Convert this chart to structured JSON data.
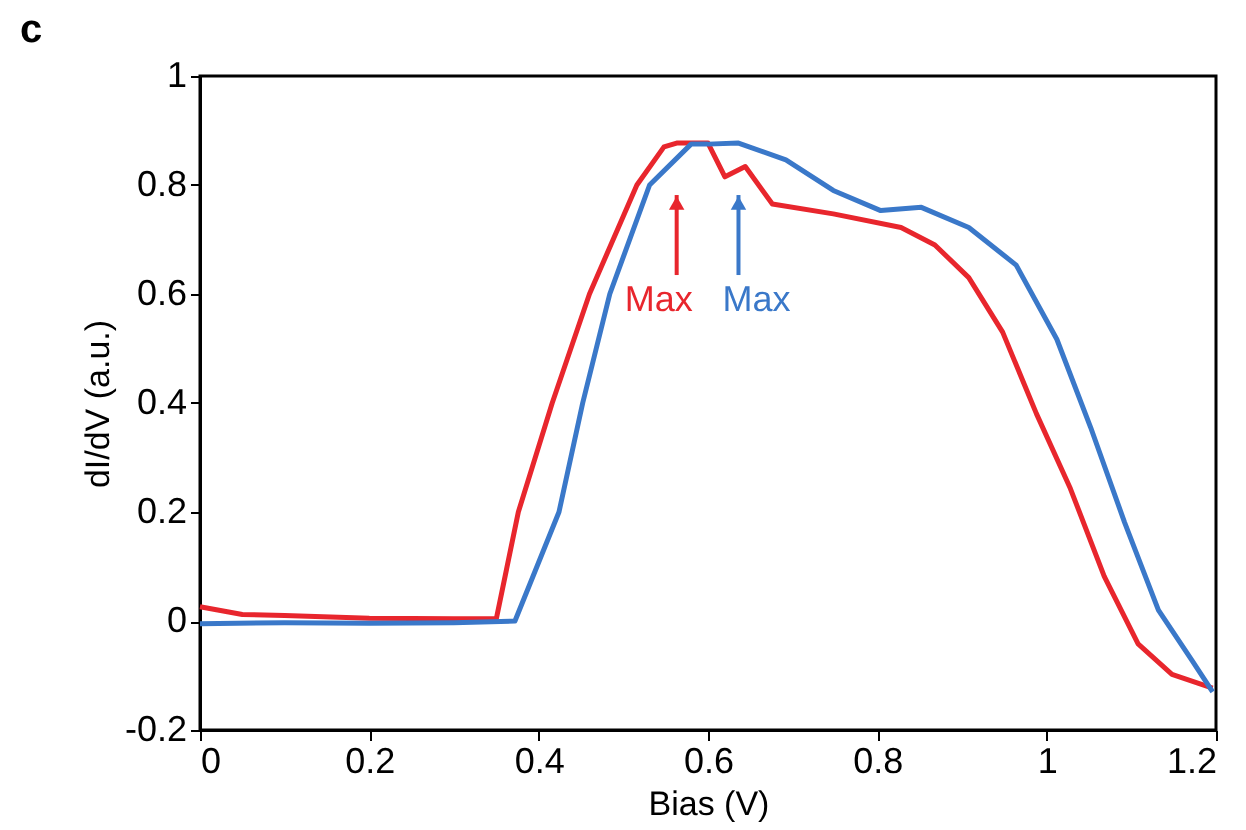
{
  "chart_data": {
    "type": "line",
    "title": "c",
    "xlabel": "Bias (V)",
    "ylabel": "dI/dV (a.u.)",
    "xlim": [
      0,
      1.2
    ],
    "xticks": [
      0,
      0.2,
      0.4,
      0.6,
      0.8,
      1,
      1.2
    ],
    "ylim": [
      -0.2,
      1
    ],
    "yticks": [
      -0.2,
      0,
      0.2,
      0.4,
      0.6,
      0.8,
      1
    ],
    "grid": false,
    "legend": false,
    "line_style": "solid",
    "marker": "none",
    "annotations": [
      "Max",
      "Max"
    ],
    "series": [
      {
        "color": "#e8262d",
        "x": [
          0,
          0.05,
          0.1,
          0.2,
          0.3,
          0.35,
          0.376,
          0.416,
          0.46,
          0.516,
          0.548,
          0.563,
          0.6,
          0.62,
          0.644,
          0.676,
          0.748,
          0.828,
          0.868,
          0.908,
          0.948,
          0.988,
          1.028,
          1.068,
          1.108,
          1.148,
          1.196
        ],
        "values": [
          0.026,
          0.012,
          0.01,
          0.005,
          0.004,
          0.004,
          0.2,
          0.4,
          0.6,
          0.8,
          0.87,
          0.877,
          0.877,
          0.815,
          0.834,
          0.765,
          0.747,
          0.722,
          0.69,
          0.63,
          0.53,
          0.38,
          0.243,
          0.082,
          -0.042,
          -0.098,
          -0.123
        ]
      },
      {
        "color": "#3a78c9",
        "x": [
          0,
          0.1,
          0.2,
          0.3,
          0.372,
          0.424,
          0.452,
          0.484,
          0.531,
          0.58,
          0.6,
          0.636,
          0.692,
          0.748,
          0.804,
          0.852,
          0.908,
          0.964,
          1.012,
          1.052,
          1.092,
          1.132,
          1.172,
          1.196
        ],
        "values": [
          -0.005,
          -0.003,
          -0.004,
          -0.003,
          0,
          0.2,
          0.4,
          0.6,
          0.8,
          0.875,
          0.875,
          0.877,
          0.846,
          0.79,
          0.753,
          0.759,
          0.722,
          0.653,
          0.517,
          0.355,
          0.181,
          0.02,
          -0.073,
          -0.13
        ]
      }
    ]
  }
}
